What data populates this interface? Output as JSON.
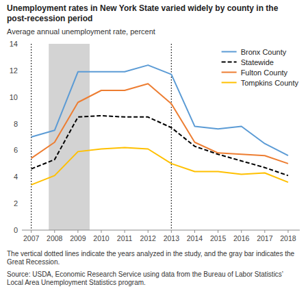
{
  "chart_data": {
    "type": "line",
    "title": "Unemployment rates in New York State varied widely by county in the post-recession period",
    "y_label": "Average annual unemployment rate, percent",
    "x": [
      2007,
      2008,
      2009,
      2010,
      2011,
      2012,
      2013,
      2014,
      2015,
      2016,
      2017,
      2018
    ],
    "series": [
      {
        "name": "Bronx County",
        "color": "#5B9BD5",
        "values": [
          7.0,
          7.5,
          11.9,
          11.9,
          11.9,
          12.4,
          11.7,
          7.8,
          7.6,
          7.8,
          6.5,
          5.6
        ]
      },
      {
        "name": "Statewide",
        "color": "#000000",
        "line_style": "dashed",
        "values": [
          4.6,
          5.3,
          8.5,
          8.6,
          8.5,
          8.5,
          7.7,
          6.3,
          5.7,
          5.2,
          4.7,
          4.1
        ]
      },
      {
        "name": "Fulton County",
        "color": "#ED7D31",
        "values": [
          5.4,
          6.6,
          9.6,
          10.5,
          10.5,
          11.0,
          9.5,
          6.6,
          5.8,
          5.7,
          5.6,
          5.0
        ]
      },
      {
        "name": "Tompkins County",
        "color": "#FFC000",
        "values": [
          3.4,
          4.1,
          5.9,
          6.1,
          6.2,
          6.1,
          5.0,
          4.4,
          4.4,
          4.2,
          4.3,
          3.6
        ]
      }
    ],
    "xlim": [
      2006.6,
      2018.5
    ],
    "xticks": [
      2007,
      2008,
      2009,
      2010,
      2011,
      2012,
      2013,
      2014,
      2015,
      2016,
      2017,
      2018
    ],
    "ylim": [
      0,
      14
    ],
    "yticks": [
      0,
      2,
      4,
      6,
      8,
      10,
      12,
      14
    ],
    "shaded_span": {
      "start": 2007.75,
      "end": 2009.5,
      "color": "#d3d3d3"
    },
    "vlines": [
      2007,
      2013
    ],
    "notes": [
      "The vertical dotted lines indicate the years analyzed in the study, and the gray bar indicates the Great Recession.",
      "Source: USDA, Economic Research Service using data from the Bureau of Labor Statistics’ Local Area Unemployment Statistics program."
    ],
    "legend": "upper right",
    "grid": false
  }
}
